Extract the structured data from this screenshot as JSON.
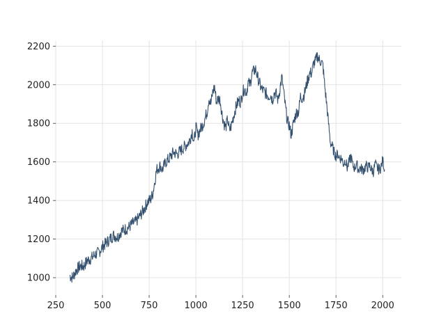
{
  "chart_data": {
    "type": "line",
    "title": "",
    "xlabel": "",
    "ylabel": "",
    "xlim": [
      250,
      2100
    ],
    "ylim": [
      910,
      2230
    ],
    "grid": true,
    "legend": "none",
    "colors": {
      "line": "#34506f",
      "grid": "#e3e3e3",
      "background": "#ffffff",
      "text": "#222222"
    },
    "x_ticks": [
      250,
      500,
      750,
      1000,
      1250,
      1500,
      1750,
      2000
    ],
    "y_ticks": [
      1000,
      1200,
      1400,
      1600,
      1800,
      2000,
      2200
    ],
    "x_tick_labels": [
      "250",
      "500",
      "750",
      "1000",
      "1250",
      "1500",
      "1750",
      "2000"
    ],
    "y_tick_labels": [
      "1000",
      "1200",
      "1400",
      "1600",
      "1800",
      "2000",
      "2200"
    ],
    "series": [
      {
        "name": "",
        "x": [
          325,
          340,
          360,
          380,
          400,
          420,
          440,
          460,
          480,
          500,
          520,
          540,
          560,
          580,
          600,
          620,
          640,
          660,
          680,
          700,
          720,
          740,
          760,
          770,
          780,
          790,
          800,
          810,
          820,
          840,
          860,
          880,
          900,
          920,
          940,
          960,
          970,
          980,
          990,
          1000,
          1010,
          1020,
          1040,
          1060,
          1070,
          1080,
          1090,
          1100,
          1110,
          1120,
          1130,
          1140,
          1150,
          1160,
          1170,
          1180,
          1190,
          1200,
          1210,
          1220,
          1230,
          1240,
          1250,
          1260,
          1270,
          1280,
          1290,
          1300,
          1310,
          1320,
          1330,
          1340,
          1350,
          1360,
          1370,
          1380,
          1390,
          1400,
          1410,
          1420,
          1430,
          1440,
          1450,
          1460,
          1470,
          1480,
          1490,
          1500,
          1510,
          1520,
          1530,
          1540,
          1550,
          1560,
          1570,
          1580,
          1590,
          1600,
          1610,
          1620,
          1630,
          1640,
          1650,
          1660,
          1670,
          1680,
          1690,
          1700,
          1710,
          1720,
          1730,
          1740,
          1750,
          1760,
          1770,
          1780,
          1790,
          1800,
          1810,
          1820,
          1830,
          1840,
          1850,
          1860,
          1870,
          1880,
          1890,
          1900,
          1910,
          1920,
          1930,
          1940,
          1950,
          1960,
          1970,
          1980,
          1990,
          2000,
          2010
        ],
        "y": [
          1010,
          1000,
          1040,
          1060,
          1060,
          1090,
          1100,
          1120,
          1130,
          1160,
          1180,
          1200,
          1220,
          1210,
          1240,
          1250,
          1260,
          1280,
          1290,
          1320,
          1350,
          1390,
          1410,
          1440,
          1500,
          1560,
          1570,
          1580,
          1560,
          1600,
          1620,
          1650,
          1640,
          1660,
          1680,
          1700,
          1720,
          1760,
          1700,
          1780,
          1740,
          1760,
          1800,
          1860,
          1930,
          1900,
          1960,
          1990,
          1910,
          1930,
          1920,
          1850,
          1800,
          1780,
          1820,
          1760,
          1790,
          1830,
          1870,
          1900,
          1920,
          1910,
          1960,
          1980,
          1960,
          2010,
          2000,
          2060,
          2070,
          2080,
          2040,
          2010,
          1980,
          1970,
          1960,
          1950,
          1940,
          1950,
          1920,
          1960,
          1950,
          1920,
          1980,
          2040,
          1960,
          1880,
          1810,
          1790,
          1740,
          1790,
          1830,
          1860,
          1860,
          1940,
          1930,
          1950,
          1990,
          2030,
          2060,
          2060,
          2110,
          2120,
          2150,
          2130,
          2120,
          2100,
          1990,
          1900,
          1800,
          1700,
          1680,
          1650,
          1630,
          1640,
          1620,
          1620,
          1590,
          1610,
          1570,
          1600,
          1630,
          1580,
          1570,
          1590,
          1560,
          1570,
          1560,
          1560,
          1580,
          1570,
          1580,
          1560,
          1550,
          1590,
          1570,
          1560,
          1570,
          1610,
          1560
        ]
      }
    ]
  }
}
